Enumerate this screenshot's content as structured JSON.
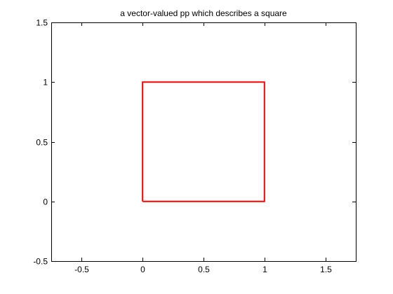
{
  "chart_data": {
    "type": "line",
    "title": "a vector-valued pp which describes a square",
    "xlabel": "",
    "ylabel": "",
    "xlim": [
      -0.75,
      1.75
    ],
    "ylim": [
      -0.5,
      1.5
    ],
    "xticks": [
      "-0.5",
      "0",
      "0.5",
      "1",
      "1.5"
    ],
    "yticks": [
      "-0.5",
      "0",
      "0.5",
      "1",
      "1.5"
    ],
    "grid": false,
    "series": [
      {
        "color": "#ff0000",
        "x": [
          0,
          1,
          1,
          0,
          0
        ],
        "y": [
          0,
          0,
          1,
          1,
          0
        ]
      }
    ]
  }
}
